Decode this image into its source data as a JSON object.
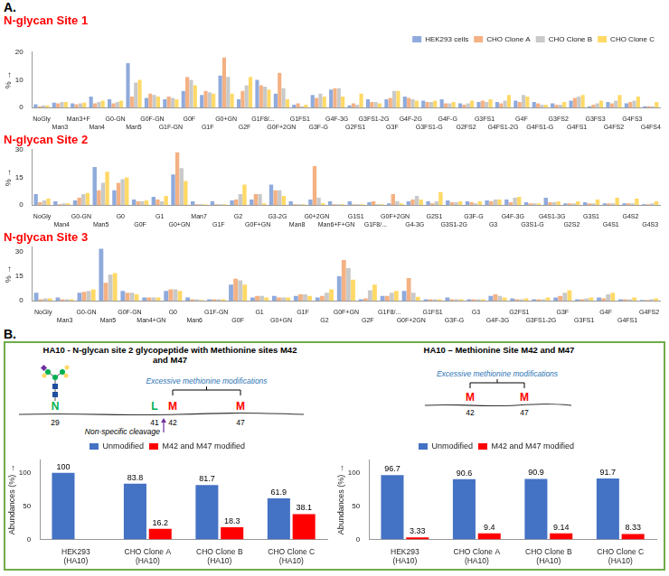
{
  "panel_labels": [
    "A.",
    "B."
  ],
  "chart_data": [
    {
      "type": "bar",
      "title": "N-glycan Site 1",
      "y_label": "% →",
      "legend": "top-right",
      "grid": false,
      "ylim": [
        0,
        20
      ],
      "yticks": [
        0,
        10,
        20
      ],
      "categories": [
        "NoGly",
        "Man3",
        "Man3+F",
        "Man4",
        "G0-GN",
        "Man5",
        "G0F-GN",
        "G1F-GN",
        "G0F",
        "G1F",
        "G0+GN",
        "G2F",
        "G1F8/...",
        "G0F+2GN",
        "G1FS1",
        "G3F-G",
        "G4F-3G",
        "G2FS1",
        "G3FS1-2G",
        "G3F",
        "G4F-2G",
        "G3FS1-G",
        "G4F-G",
        "G2FS2",
        "G3FS1",
        "G4FS1-2G",
        "G4F",
        "G4FS1-G",
        "G3FS2",
        "G4FS1",
        "G3FS3",
        "G4FS2",
        "G4FS3",
        "G4FS4"
      ],
      "series": [
        {
          "name": "HEK293 cells",
          "color": "#8faadc",
          "values": [
            1.2,
            1.8,
            1.5,
            4,
            3,
            16,
            3.5,
            3,
            6,
            4.5,
            11.5,
            3,
            10,
            5,
            1,
            4.5,
            6.5,
            0.8,
            3,
            3,
            4,
            2.5,
            3,
            1.5,
            2,
            2,
            2.5,
            2,
            1.5,
            2.5,
            0.5,
            2,
            1.5,
            0.5
          ]
        },
        {
          "name": "CHO Clone A",
          "color": "#f4b183",
          "values": [
            0.5,
            1.5,
            1.2,
            1.5,
            1.5,
            4,
            5,
            4,
            11,
            6,
            18,
            6,
            8,
            12.5,
            1.5,
            3.5,
            7,
            1.5,
            2,
            3.5,
            3.5,
            2,
            1.5,
            1,
            2.5,
            1.5,
            2,
            1.5,
            1,
            3.5,
            1,
            1.5,
            2,
            0.5
          ]
        },
        {
          "name": "CHO Clone B",
          "color": "#c9c9c9",
          "values": [
            0.8,
            2,
            1.5,
            2,
            2,
            9,
            4.5,
            3.5,
            10,
            5.5,
            11,
            8,
            7.5,
            7,
            0.5,
            5,
            7,
            1,
            2,
            6,
            3,
            2,
            1.5,
            1.5,
            2,
            2.5,
            4.5,
            1,
            1,
            4,
            1.5,
            2.5,
            2.5,
            0.5
          ]
        },
        {
          "name": "CHO Clone C",
          "color": "#ffd966",
          "values": [
            0.8,
            2,
            1.8,
            2.5,
            2.5,
            10,
            4,
            3,
            8,
            5,
            5,
            11,
            6.5,
            3,
            1,
            4,
            4,
            5,
            1.5,
            6,
            2.5,
            2.5,
            2,
            2.5,
            3,
            4.5,
            4,
            1,
            2,
            4.5,
            2.5,
            4.5,
            4,
            2
          ]
        }
      ]
    },
    {
      "type": "bar",
      "title": "N-glycan Site 2",
      "y_label": "% →",
      "grid": false,
      "ylim": [
        0,
        30
      ],
      "yticks": [
        0,
        15,
        30
      ],
      "categories": [
        "NoGly",
        "Man4",
        "G0-GN",
        "Man5",
        "G0",
        "G0F",
        "G1",
        "G0+GN",
        "Man7",
        "G1F",
        "G2",
        "G0F+GN",
        "G3-2G",
        "Man8",
        "G0+2GN",
        "Man6+F+GN",
        "G1S1",
        "G1F8/...",
        "G0F+2GN",
        "G4-3G",
        "G2S1",
        "G3S1-2G",
        "G3F-G",
        "G3",
        "G4F-3G",
        "G3S1-G",
        "G4S1-3G",
        "G2S2",
        "G3S1",
        "G4S1",
        "G4S2",
        "G4S3"
      ],
      "series": [
        {
          "name": "HEK293 cells",
          "color": "#8faadc",
          "values": [
            6,
            2,
            2.5,
            20.5,
            8,
            3,
            4.5,
            16.5,
            2,
            2,
            2.5,
            3,
            11,
            2,
            3,
            2,
            2,
            1.5,
            1,
            2,
            2,
            2.5,
            2,
            2.5,
            3,
            1.5,
            4,
            1,
            1.5,
            1,
            1,
            0.5
          ]
        },
        {
          "name": "CHO Clone A",
          "color": "#f4b183",
          "values": [
            1.5,
            0.5,
            4,
            8,
            12,
            2,
            3,
            28.5,
            0.5,
            0.5,
            3,
            6,
            8,
            0.5,
            21,
            0.5,
            0.5,
            2,
            6,
            3,
            1,
            1.5,
            1.5,
            2,
            1.5,
            1,
            1.5,
            1,
            1,
            1,
            1,
            0.5
          ]
        },
        {
          "name": "CHO Clone B",
          "color": "#c9c9c9",
          "values": [
            2.5,
            1,
            6,
            12,
            14,
            2,
            2,
            20,
            0.5,
            0.5,
            6,
            6,
            8,
            0.5,
            4,
            0.5,
            0.5,
            0.5,
            2,
            5,
            2,
            1.5,
            1,
            3,
            4,
            1,
            1.5,
            1,
            1,
            1,
            1,
            1
          ]
        },
        {
          "name": "CHO Clone C",
          "color": "#ffd966",
          "values": [
            3.5,
            1,
            6.5,
            18,
            15,
            2.5,
            5,
            13,
            0.5,
            0.5,
            11,
            1,
            5,
            0.5,
            1,
            0.5,
            0.5,
            0.5,
            1,
            3,
            7,
            2,
            2,
            3,
            4.5,
            1,
            2,
            2,
            3,
            4,
            3.5,
            2
          ]
        }
      ]
    },
    {
      "type": "bar",
      "title": "N-glycan Site 3",
      "y_label": "% →",
      "grid": false,
      "ylim": [
        0,
        33
      ],
      "yticks": [
        0,
        15,
        30
      ],
      "categories": [
        "NoGly",
        "Man3",
        "G0-GN",
        "Man5",
        "G0F-GN",
        "Man4+GN",
        "G0",
        "Man6",
        "G1F-GN",
        "G0F",
        "G1",
        "G0+GN",
        "G1F",
        "G2",
        "G0F+GN",
        "G2F",
        "G1F8/...",
        "G0F+2GN",
        "G1FS1",
        "G3F-G",
        "G3",
        "G4F-3G",
        "G2FS1",
        "G3FS1-2G",
        "G3F",
        "G3FS1",
        "G4F",
        "G4FS1",
        "G4FS2"
      ],
      "series": [
        {
          "name": "HEK293 cells",
          "color": "#8faadc",
          "values": [
            5,
            2,
            5,
            32,
            6,
            2,
            6,
            2,
            1,
            10,
            2,
            3,
            3,
            2,
            15,
            1,
            3,
            6,
            1,
            2,
            1,
            3,
            1.5,
            1,
            2,
            1,
            2,
            1,
            0.5
          ]
        },
        {
          "name": "CHO Clone A",
          "color": "#f4b183",
          "values": [
            1,
            1,
            5.5,
            11,
            5,
            2,
            7,
            1,
            1,
            13.5,
            3,
            2,
            4,
            3,
            25,
            1.5,
            3,
            14,
            1,
            1,
            1,
            4,
            1,
            1,
            3,
            1,
            1.5,
            1,
            0.5
          ]
        },
        {
          "name": "CHO Clone B",
          "color": "#c9c9c9",
          "values": [
            1.5,
            1,
            6,
            16,
            5,
            2,
            7,
            1,
            1,
            12.5,
            3,
            2,
            4,
            5,
            20,
            6.5,
            5,
            5,
            1,
            1,
            1,
            3,
            1,
            1,
            5,
            1.5,
            4,
            1,
            1
          ]
        },
        {
          "name": "CHO Clone C",
          "color": "#ffd966",
          "values": [
            1.5,
            1,
            7,
            17,
            4,
            2,
            6,
            0.5,
            1,
            10,
            2,
            2,
            3,
            7,
            13,
            10,
            6,
            2.5,
            1,
            1,
            1,
            2,
            1.5,
            2,
            6.5,
            2,
            5,
            2,
            1.5
          ]
        }
      ]
    },
    {
      "type": "bar",
      "y_label": "Abundances (%) →",
      "legend": "top",
      "grid": false,
      "data_labels": true,
      "ylim": [
        0,
        120
      ],
      "yticks": [
        0,
        50,
        100
      ],
      "categories": [
        "HEK293 (HA10)",
        "CHO Clone A (HA10)",
        "CHO Clone B (HA10)",
        "CHO Clone C (HA10)"
      ],
      "series": [
        {
          "name": "Unmodified",
          "color": "#4472c4",
          "values": [
            100,
            83.8,
            81.7,
            61.9
          ]
        },
        {
          "name": "M42 and M47 modified",
          "color": "#ff0000",
          "values": [
            null,
            16.2,
            18.3,
            38.1
          ]
        }
      ]
    },
    {
      "type": "bar",
      "y_label": "Abundances (%) →",
      "legend": "top",
      "grid": false,
      "data_labels": true,
      "ylim": [
        0,
        120
      ],
      "yticks": [
        0,
        50,
        100
      ],
      "categories": [
        "HEK293 (HA10)",
        "CHO Clone A (HA10)",
        "CHO Clone B (HA10)",
        "CHO Clone C (HA10)"
      ],
      "series": [
        {
          "name": "Unmodified",
          "color": "#4472c4",
          "values": [
            96.7,
            90.6,
            90.9,
            91.7
          ]
        },
        {
          "name": "M42 and M47 modified",
          "color": "#ff0000",
          "values": [
            3.33,
            9.4,
            9.14,
            8.33
          ]
        }
      ]
    }
  ],
  "diagrams": [
    {
      "title": "HA10 - N-glycan site 2 glycopeptide with Methionine sites M42 and M47",
      "note": "Excessive methionine modifications",
      "cleavage": "Non-specific cleavage",
      "residues": [
        {
          "letter": "N",
          "number": 29
        },
        {
          "letter": "L",
          "number": 41
        },
        {
          "letter": "M",
          "number": 42
        },
        {
          "letter": "M",
          "number": 47
        }
      ]
    },
    {
      "title": "HA10 – Methionine Site M42 and M47",
      "note": "Excessive methionine modifications",
      "residues": [
        {
          "letter": "M",
          "number": 42
        },
        {
          "letter": "M",
          "number": 47
        }
      ]
    }
  ]
}
